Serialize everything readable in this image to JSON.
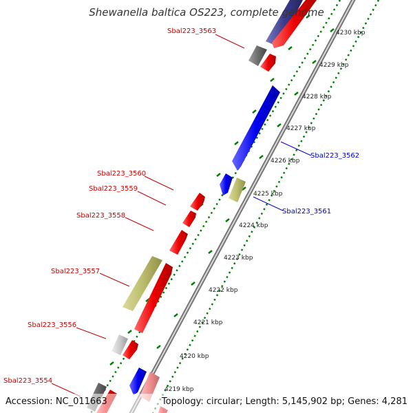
{
  "title": "Shewanella baltica OS223, complete genome",
  "footer": {
    "accession": "Accession: NC_011663",
    "topology": "Topology: circular; Length: 5,145,902 bp; Genes: 4,281"
  },
  "colors": {
    "forward_gene": "#ff0000",
    "reverse_gene": "#0000ff",
    "other_forward": "#3c3c8c",
    "olive_feature": "#bdbd6e",
    "grey_feature": "#6e6e6e",
    "light_grey_feature": "#cccccc",
    "pink_feature": "#f09090",
    "backbone": "#888888",
    "ticks": "#008000",
    "forward_label": "#cc0000",
    "reverse_label": "#0000cc"
  },
  "ticks": [
    {
      "label": "4219 kbp"
    },
    {
      "label": "4220 kbp"
    },
    {
      "label": "4221 kbp"
    },
    {
      "label": "4222 kbp"
    },
    {
      "label": "4223 kbp"
    },
    {
      "label": "4224 kbp"
    },
    {
      "label": "4225 kbp"
    },
    {
      "label": "4226 kbp"
    },
    {
      "label": "4227 kbp"
    },
    {
      "label": "4228 kbp"
    },
    {
      "label": "4229 kbp"
    },
    {
      "label": "4230 kbp"
    }
  ],
  "gene_labels": [
    {
      "text": "Sbal223_3563",
      "strand": "forward"
    },
    {
      "text": "Sbal223_3562",
      "strand": "reverse"
    },
    {
      "text": "Sbal223_3561",
      "strand": "reverse"
    },
    {
      "text": "Sbal223_3560",
      "strand": "forward"
    },
    {
      "text": "Sbal223_3559",
      "strand": "forward"
    },
    {
      "text": "Sbal223_3558",
      "strand": "forward"
    },
    {
      "text": "Sbal223_3557",
      "strand": "forward"
    },
    {
      "text": "Sbal223_3556",
      "strand": "forward"
    },
    {
      "text": "Sbal223_3554",
      "strand": "forward"
    }
  ]
}
